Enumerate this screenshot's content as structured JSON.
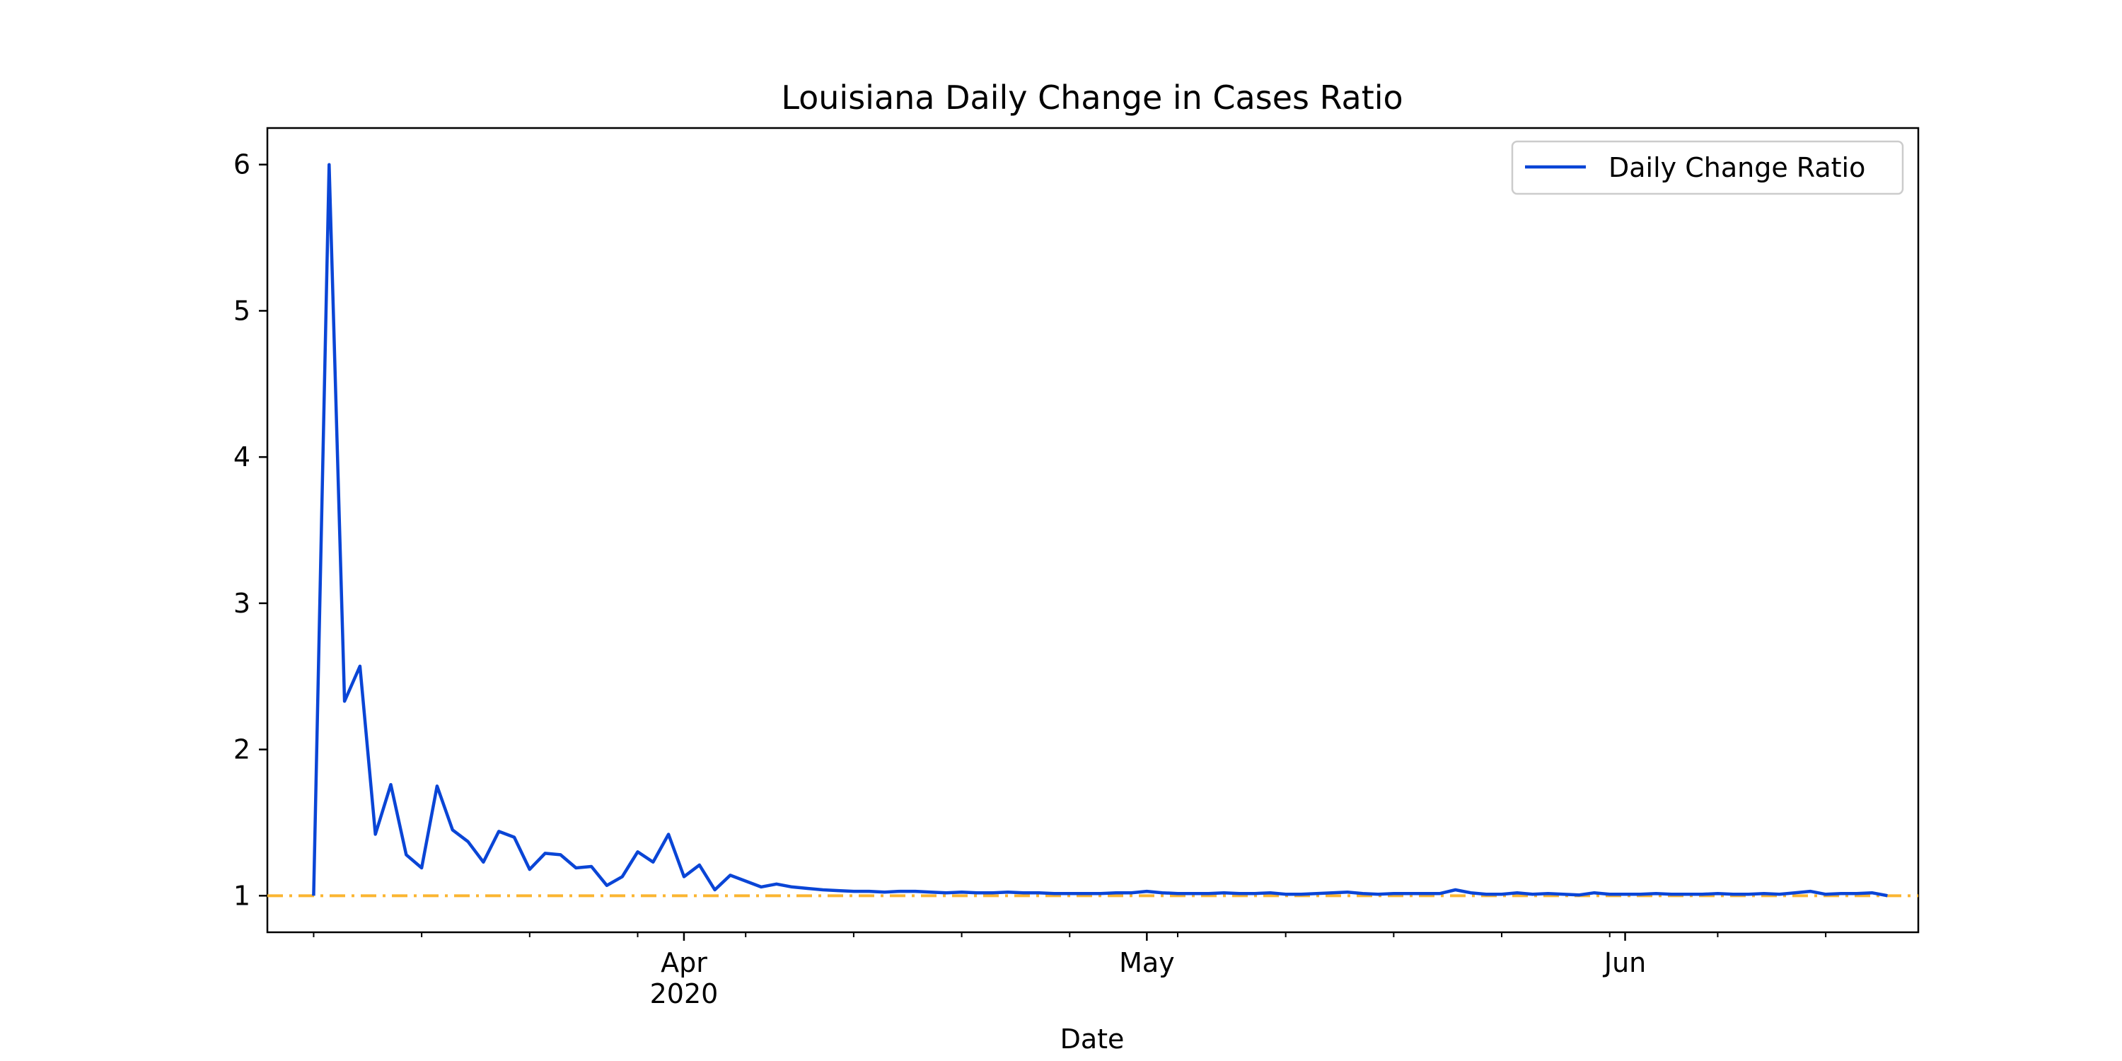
{
  "chart_data": {
    "type": "line",
    "title": "Louisiana Daily Change in Cases Ratio",
    "xlabel": "Date",
    "ylabel": "",
    "x_start": "2020-03-05",
    "x_end": "2020-06-20",
    "xticks_major": [
      {
        "date": "2020-04-01",
        "label": "Apr",
        "sublabel": "2020"
      },
      {
        "date": "2020-05-01",
        "label": "May",
        "sublabel": ""
      },
      {
        "date": "2020-06-01",
        "label": "Jun",
        "sublabel": ""
      }
    ],
    "xticks_minor": [
      "2020-03-08",
      "2020-03-15",
      "2020-03-22",
      "2020-03-29",
      "2020-04-05",
      "2020-04-12",
      "2020-04-19",
      "2020-04-26",
      "2020-05-03",
      "2020-05-10",
      "2020-05-17",
      "2020-05-24",
      "2020-05-31",
      "2020-06-07",
      "2020-06-14"
    ],
    "yticks": [
      1,
      2,
      3,
      4,
      5,
      6
    ],
    "ylim": [
      0.75,
      6.25
    ],
    "grid": false,
    "legend_position": "top-right",
    "series": [
      {
        "name": "Daily Change Ratio",
        "color": "#0a45d6",
        "start_date": "2020-03-08",
        "values": [
          1.0,
          6.0,
          2.33,
          2.57,
          1.42,
          1.76,
          1.28,
          1.19,
          1.75,
          1.45,
          1.37,
          1.23,
          1.44,
          1.4,
          1.18,
          1.29,
          1.28,
          1.19,
          1.2,
          1.07,
          1.13,
          1.3,
          1.23,
          1.42,
          1.13,
          1.21,
          1.04,
          1.14,
          1.1,
          1.06,
          1.08,
          1.06,
          1.05,
          1.04,
          1.035,
          1.03,
          1.03,
          1.025,
          1.03,
          1.03,
          1.025,
          1.02,
          1.025,
          1.02,
          1.02,
          1.025,
          1.02,
          1.02,
          1.015,
          1.015,
          1.015,
          1.015,
          1.02,
          1.02,
          1.03,
          1.02,
          1.015,
          1.015,
          1.015,
          1.02,
          1.015,
          1.015,
          1.02,
          1.01,
          1.01,
          1.015,
          1.02,
          1.025,
          1.015,
          1.01,
          1.015,
          1.015,
          1.015,
          1.015,
          1.04,
          1.02,
          1.01,
          1.01,
          1.02,
          1.01,
          1.015,
          1.01,
          1.005,
          1.02,
          1.01,
          1.01,
          1.01,
          1.015,
          1.01,
          1.01,
          1.01,
          1.015,
          1.01,
          1.01,
          1.015,
          1.01,
          1.02,
          1.03,
          1.01,
          1.015,
          1.015,
          1.02,
          1.0
        ]
      }
    ],
    "reference_line": {
      "y": 1.0,
      "color": "#fbb531",
      "style": "dash-dot"
    }
  }
}
